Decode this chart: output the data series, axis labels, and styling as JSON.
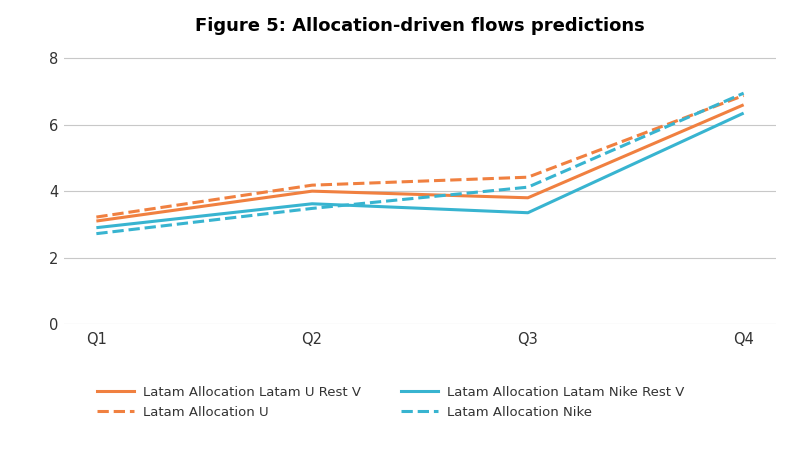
{
  "title": "Figure 5: Allocation-driven flows predictions",
  "quarters": [
    "Q1",
    "Q2",
    "Q3",
    "Q4"
  ],
  "series_order": [
    "latam_u_rest_v",
    "latam_u",
    "latam_nike_rest_v",
    "latam_nike"
  ],
  "series": {
    "latam_u_rest_v": {
      "label": "Latam Allocation Latam U Rest V",
      "values": [
        3.1,
        4.0,
        3.8,
        6.6
      ],
      "color": "#F08040",
      "linestyle": "solid",
      "linewidth": 2.2
    },
    "latam_u": {
      "label": "Latam Allocation U",
      "values": [
        3.22,
        4.18,
        4.42,
        6.88
      ],
      "color": "#F08040",
      "linestyle": "dashed",
      "linewidth": 2.2
    },
    "latam_nike_rest_v": {
      "label": "Latam Allocation Latam Nike Rest V",
      "values": [
        2.9,
        3.62,
        3.35,
        6.35
      ],
      "color": "#38B4D0",
      "linestyle": "solid",
      "linewidth": 2.2
    },
    "latam_nike": {
      "label": "Latam Allocation Nike",
      "values": [
        2.72,
        3.48,
        4.12,
        6.95
      ],
      "color": "#38B4D0",
      "linestyle": "dashed",
      "linewidth": 2.2
    }
  },
  "legend_order": [
    "latam_u_rest_v",
    "latam_u",
    "latam_nike_rest_v",
    "latam_nike"
  ],
  "ylim": [
    0,
    8.4
  ],
  "yticks": [
    0,
    2,
    4,
    6,
    8
  ],
  "background_color": "#ffffff",
  "grid_color": "#c8c8c8",
  "title_fontsize": 13,
  "tick_fontsize": 10.5,
  "legend_fontsize": 9.5
}
